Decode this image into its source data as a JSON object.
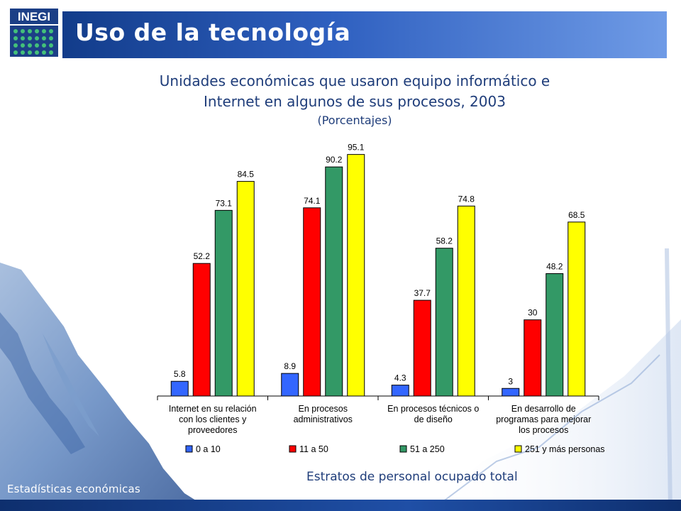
{
  "header": {
    "logo_text": "INEGI",
    "title": "Uso de la tecnología"
  },
  "chart_data": {
    "type": "bar",
    "title_line1": "Unidades económicas que usaron equipo informático e",
    "title_line2": "Internet en algunos de sus procesos, 2003",
    "subtitle": "(Porcentajes)",
    "xlabel": "Estratos de personal ocupado total",
    "ylabel": "",
    "ylim": [
      0,
      100
    ],
    "grid": false,
    "legend_position": "bottom",
    "categories": [
      [
        "Internet en su relación",
        "con los clientes y",
        "proveedores"
      ],
      [
        "En procesos",
        "administrativos"
      ],
      [
        "En procesos técnicos o",
        "de diseño"
      ],
      [
        "En desarrollo de",
        "programas para mejorar",
        "los procesos"
      ]
    ],
    "series": [
      {
        "name": "0 a 10",
        "color": "#3366ff",
        "values": [
          5.8,
          8.9,
          4.3,
          3
        ]
      },
      {
        "name": "11 a 50",
        "color": "#ff0000",
        "values": [
          52.2,
          74.1,
          37.7,
          30
        ]
      },
      {
        "name": "51 a 250",
        "color": "#339966",
        "values": [
          73.1,
          90.2,
          58.2,
          48.2
        ]
      },
      {
        "name": "251 y más personas",
        "color": "#ffff00",
        "values": [
          84.5,
          95.1,
          74.8,
          68.5
        ]
      }
    ]
  },
  "footer": {
    "label": "Estadísticas económicas"
  }
}
